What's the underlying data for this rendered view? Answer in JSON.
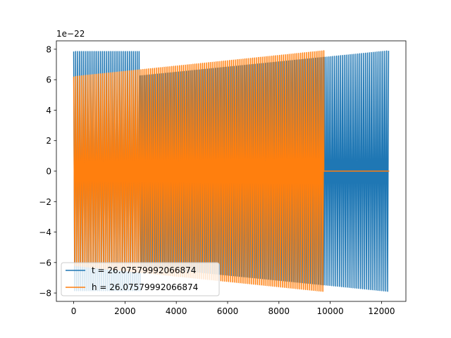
{
  "chart_data": {
    "type": "line",
    "offset_text": "1e−22",
    "xlim": [
      -675,
      12950
    ],
    "ylim": [
      -8.55,
      8.55
    ],
    "grid": false,
    "legend_location": "lower-left",
    "x_ticks": [
      0,
      2000,
      4000,
      6000,
      8000,
      10000,
      12000
    ],
    "x_tick_labels": [
      "0",
      "2000",
      "4000",
      "6000",
      "8000",
      "10000",
      "12000"
    ],
    "y_ticks": [
      -8,
      -6,
      -4,
      -2,
      0,
      2,
      4,
      6,
      8
    ],
    "y_tick_labels": [
      "−8",
      "−6",
      "−4",
      "−2",
      "0",
      "2",
      "4",
      "6",
      "8"
    ],
    "series": [
      {
        "name": "t = 26.07579992066874",
        "color": "#1f77b4",
        "period": 75,
        "segments": [
          {
            "x0": 0,
            "x1": 2600,
            "amp0": 7.85,
            "amp1": 7.85,
            "cross_over": true
          },
          {
            "x0": 2600,
            "x1": 12300,
            "amp0": 6.25,
            "amp1": 7.9
          }
        ]
      },
      {
        "name": "h = 26.07579992066874",
        "color": "#ff7f0e",
        "period": 75,
        "segments": [
          {
            "x0": 0,
            "x1": 9750,
            "amp0": 6.2,
            "amp1": 7.9
          },
          {
            "x0": 9750,
            "x1": 12300,
            "amp0": 0,
            "amp1": 0
          }
        ]
      }
    ]
  }
}
